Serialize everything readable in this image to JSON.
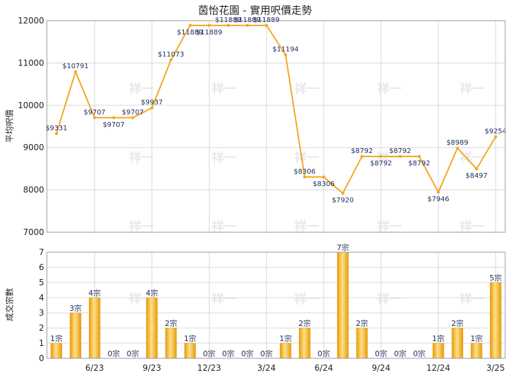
{
  "title": "茵怡花園 - 實用呎價走勢",
  "watermark": "祥一",
  "colors": {
    "line": "#f5a623",
    "bar_light": "#fde08a",
    "bar_dark": "#e99a0a",
    "grid": "#d8d8d8",
    "axis": "#999999"
  },
  "chart_data": [
    {
      "type": "line",
      "ylabel": "平均呎價",
      "ylim": [
        7000,
        12000
      ],
      "yticks": [
        "7000",
        "8000",
        "9000",
        "10000",
        "11000",
        "12000"
      ],
      "x": [
        "4/23",
        "5/23",
        "6/23",
        "7/23",
        "8/23",
        "9/23",
        "10/23",
        "11/23",
        "12/23",
        "1/24",
        "2/24",
        "3/24",
        "4/24",
        "5/24",
        "6/24",
        "7/24",
        "8/24",
        "9/24",
        "10/24",
        "11/24",
        "12/24",
        "1/25",
        "2/25",
        "3/25"
      ],
      "values": [
        9331,
        10791,
        9707,
        9707,
        9707,
        9937,
        11073,
        11889,
        11889,
        11889,
        11889,
        11889,
        11194,
        8306,
        8306,
        7920,
        8792,
        8792,
        8792,
        8792,
        7946,
        8989,
        8497,
        9254
      ],
      "labels": [
        "$9331",
        "$10791",
        "$9707",
        "$9707",
        "$9707",
        "$9937",
        "$11073",
        "$11889",
        "$11889",
        "$11889",
        "$11889",
        "$11889",
        "$11194",
        "$8306",
        "$8306",
        "$7920",
        "$8792",
        "$8792",
        "$8792",
        "$8792",
        "$7946",
        "$8989",
        "$8497",
        "$9254"
      ]
    },
    {
      "type": "bar",
      "ylabel": "成交宗數",
      "ylim": [
        0,
        7
      ],
      "yticks": [
        "0",
        "1",
        "2",
        "3",
        "4",
        "5",
        "6",
        "7"
      ],
      "x": [
        "4/23",
        "5/23",
        "6/23",
        "7/23",
        "8/23",
        "9/23",
        "10/23",
        "11/23",
        "12/23",
        "1/24",
        "2/24",
        "3/24",
        "4/24",
        "5/24",
        "6/24",
        "7/24",
        "8/24",
        "9/24",
        "10/24",
        "11/24",
        "12/24",
        "1/25",
        "2/25",
        "3/25"
      ],
      "values": [
        1,
        3,
        4,
        0,
        0,
        4,
        2,
        1,
        0,
        0,
        0,
        0,
        1,
        2,
        0,
        7,
        2,
        0,
        0,
        0,
        1,
        2,
        1,
        5
      ],
      "labels": [
        "1宗",
        "3宗",
        "4宗",
        "0宗",
        "0宗",
        "4宗",
        "2宗",
        "1宗",
        "0宗",
        "0宗",
        "0宗",
        "0宗",
        "1宗",
        "2宗",
        "0宗",
        "7宗",
        "2宗",
        "0宗",
        "0宗",
        "0宗",
        "1宗",
        "2宗",
        "1宗",
        "5宗"
      ]
    }
  ],
  "x_axis": {
    "tick_positions": [
      2,
      5,
      8,
      11,
      14,
      17,
      20,
      23
    ],
    "tick_labels": [
      "6/23",
      "9/23",
      "12/23",
      "3/24",
      "6/24",
      "9/24",
      "12/24",
      "3/25"
    ]
  }
}
